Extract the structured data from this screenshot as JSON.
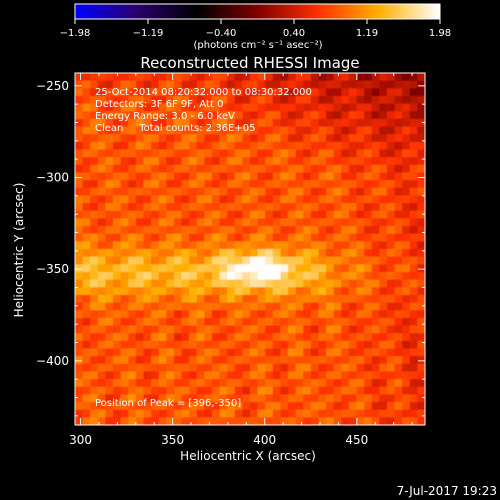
{
  "chart_data": {
    "type": "heatmap",
    "title": "Reconstructed RHESSI Image",
    "xlabel": "Heliocentric X (arcsec)",
    "ylabel": "Heliocentric Y (arcsec)",
    "xlim": [
      297,
      487
    ],
    "ylim": [
      -435,
      -243
    ],
    "x_ticks": [
      300,
      350,
      400,
      450
    ],
    "y_ticks": [
      -250,
      -300,
      -350,
      -400
    ],
    "x_tick_labels": [
      "300",
      "350",
      "400",
      "450"
    ],
    "y_tick_labels": [
      "−250",
      "−300",
      "−350",
      "−400"
    ],
    "colorbar": {
      "tick_labels": [
        "−1.98",
        "−1.19",
        "−0.40",
        "0.40",
        "1.19",
        "1.98"
      ],
      "min": -1.98,
      "max": 1.98,
      "units": "(photons cm⁻² s⁻¹ asec⁻²)",
      "colormap": [
        "#0000ff",
        "#2a0070",
        "#000000",
        "#7f0000",
        "#ff3000",
        "#ffb000",
        "#ffffff"
      ]
    },
    "annotations": [
      "25-Oct-2014 08:20:32.000 to 08:30:32.000",
      "Detectors: 3F 6F 9F, Att 0",
      "Energy Range: 3.0 - 6.0 keV",
      "Clean     Total counts: 2.36E+05"
    ],
    "peak_label": "Position of Peak = [396,-350]",
    "peak": {
      "x": 396,
      "y": -350
    },
    "grid": false
  },
  "footer": {
    "date": "7-Jul-2017 19:23"
  }
}
